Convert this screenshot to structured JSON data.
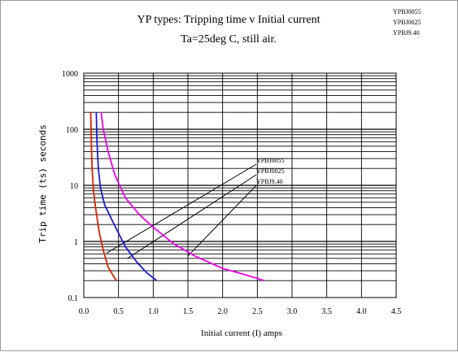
{
  "chart_data": {
    "type": "line",
    "title": "YP types: Tripping time v Initial current",
    "subtitle": "Ta=25deg C, still air.",
    "xlabel": "Initial current (I) amps",
    "ylabel": "Trip time (ts) seconds",
    "xlim": [
      0,
      4.5
    ],
    "ylim": [
      0.1,
      1000
    ],
    "yscale": "log",
    "x_ticks": [
      "0.0",
      "0.5",
      "1.0",
      "1.5",
      "2.0",
      "2.5",
      "3.0",
      "3.5",
      "4.0",
      "4.5"
    ],
    "y_ticks": [
      "0.1",
      "1",
      "10",
      "100",
      "1000"
    ],
    "grid": true,
    "legend_corner": [
      "YPBJ0055",
      "YPBJ0025",
      "YPBJ9.40"
    ],
    "series": [
      {
        "name": "YPBJ0055",
        "color": "#dd2200",
        "callout": {
          "text": "YPBJ0055",
          "point": [
            0.33,
            0.62
          ]
        },
        "points": [
          [
            0.1,
            200
          ],
          [
            0.11,
            50
          ],
          [
            0.12,
            20
          ],
          [
            0.14,
            8
          ],
          [
            0.17,
            4
          ],
          [
            0.22,
            1.5
          ],
          [
            0.28,
            0.7
          ],
          [
            0.35,
            0.35
          ],
          [
            0.42,
            0.25
          ],
          [
            0.47,
            0.2
          ]
        ]
      },
      {
        "name": "YPBJ0025",
        "color": "#1a1adc",
        "callout": {
          "text": "YPBJ0025",
          "point": [
            0.63,
            0.5
          ]
        },
        "points": [
          [
            0.18,
            200
          ],
          [
            0.19,
            60
          ],
          [
            0.21,
            20
          ],
          [
            0.24,
            9
          ],
          [
            0.3,
            4.5
          ],
          [
            0.4,
            2.5
          ],
          [
            0.5,
            1.4
          ],
          [
            0.6,
            0.8
          ],
          [
            0.75,
            0.45
          ],
          [
            0.9,
            0.28
          ],
          [
            1.05,
            0.2
          ]
        ]
      },
      {
        "name": "YPBJ9.40",
        "color": "#ee00ee",
        "callout": {
          "text": "YPBJ9.40",
          "point": [
            1.5,
            0.55
          ]
        },
        "points": [
          [
            0.25,
            200
          ],
          [
            0.28,
            100
          ],
          [
            0.35,
            40
          ],
          [
            0.45,
            15
          ],
          [
            0.6,
            6
          ],
          [
            0.8,
            3
          ],
          [
            1.0,
            1.8
          ],
          [
            1.3,
            0.9
          ],
          [
            1.6,
            0.55
          ],
          [
            2.0,
            0.33
          ],
          [
            2.35,
            0.25
          ],
          [
            2.6,
            0.2
          ]
        ]
      }
    ]
  }
}
